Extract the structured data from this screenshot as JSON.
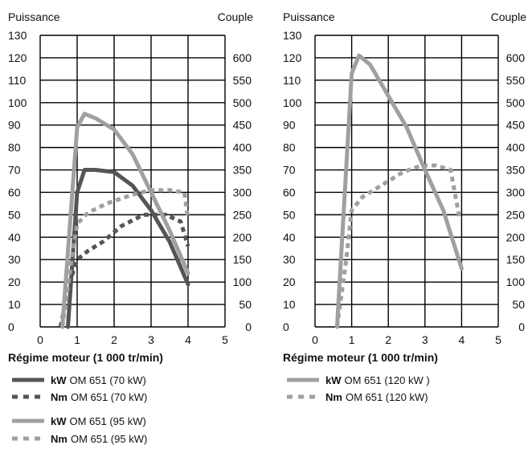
{
  "chart_data": [
    {
      "type": "line",
      "y_left_label": "Puissance",
      "y_right_label": "Couple",
      "xlabel": "Régime moteur (1 000 tr/min)",
      "xlim": [
        0,
        5
      ],
      "ylim_left": [
        0,
        130
      ],
      "ylim_right": [
        0,
        650
      ],
      "x_ticks": [
        "0",
        "1",
        "2",
        "3",
        "4",
        "5"
      ],
      "y_left_ticks": [
        "0",
        "10",
        "20",
        "30",
        "40",
        "50",
        "60",
        "70",
        "80",
        "90",
        "100",
        "110",
        "120",
        "130"
      ],
      "y_right_ticks": [
        "0",
        "50",
        "100",
        "150",
        "200",
        "250",
        "300",
        "350",
        "400",
        "450",
        "500",
        "550",
        "600"
      ],
      "grid": true,
      "series": [
        {
          "legend_bold": "kW",
          "legend_text": "OM 651 (70 kW)",
          "axis": "left",
          "color": "#555555",
          "dash": "solid",
          "x": [
            0.75,
            1.0,
            1.2,
            1.5,
            2.0,
            2.5,
            3.0,
            3.5,
            4.0
          ],
          "y": [
            0,
            60,
            70,
            70,
            69,
            63,
            52,
            38,
            19
          ]
        },
        {
          "legend_bold": "Nm",
          "legend_text": "OM 651 (70 kW)",
          "axis": "right",
          "color": "#555555",
          "dash": "dotted",
          "x": [
            0.55,
            0.8,
            1.0,
            1.3,
            1.7,
            2.2,
            2.8,
            3.4,
            3.8,
            4.0
          ],
          "y": [
            0,
            100,
            150,
            170,
            190,
            225,
            250,
            250,
            235,
            180
          ]
        },
        {
          "legend_bold": "kW",
          "legend_text": "OM 651 (95 kW)",
          "axis": "left",
          "color": "#a0a0a0",
          "dash": "solid",
          "x": [
            0.6,
            1.0,
            1.2,
            1.5,
            2.0,
            2.5,
            3.0,
            3.5,
            4.0
          ],
          "y": [
            0,
            89,
            95,
            93,
            88,
            77,
            60,
            43,
            24
          ]
        },
        {
          "legend_bold": "Nm",
          "legend_text": "OM 651 (95 kW)",
          "axis": "right",
          "color": "#a0a0a0",
          "dash": "dotted",
          "x": [
            0.6,
            0.85,
            1.0,
            1.3,
            1.8,
            2.5,
            3.0,
            3.5,
            3.9,
            4.0
          ],
          "y": [
            0,
            150,
            230,
            255,
            275,
            295,
            305,
            305,
            300,
            240
          ]
        }
      ]
    },
    {
      "type": "line",
      "y_left_label": "Puissance",
      "y_right_label": "Couple",
      "xlabel": "Régime moteur (1 000 tr/min)",
      "xlim": [
        0,
        5
      ],
      "ylim_left": [
        0,
        130
      ],
      "ylim_right": [
        0,
        650
      ],
      "x_ticks": [
        "0",
        "1",
        "2",
        "3",
        "4",
        "5"
      ],
      "y_left_ticks": [
        "0",
        "10",
        "20",
        "30",
        "40",
        "50",
        "60",
        "70",
        "80",
        "90",
        "100",
        "110",
        "120",
        "130"
      ],
      "y_right_ticks": [
        "0",
        "50",
        "100",
        "150",
        "200",
        "250",
        "300",
        "350",
        "400",
        "450",
        "500",
        "550",
        "600"
      ],
      "grid": true,
      "series": [
        {
          "legend_bold": "kW",
          "legend_text": "OM 651 (120 kW )",
          "axis": "left",
          "color": "#a0a0a0",
          "dash": "solid",
          "x": [
            0.6,
            1.0,
            1.2,
            1.5,
            2.0,
            2.5,
            3.0,
            3.5,
            4.0
          ],
          "y": [
            0,
            113,
            121,
            117,
            103,
            89,
            70,
            52,
            26
          ]
        },
        {
          "legend_bold": "Nm",
          "legend_text": "OM 651 (120 kW)",
          "axis": "right",
          "color": "#a0a0a0",
          "dash": "dotted",
          "x": [
            0.6,
            0.85,
            1.0,
            1.3,
            1.8,
            2.4,
            2.9,
            3.3,
            3.7,
            3.95
          ],
          "y": [
            0,
            150,
            260,
            290,
            315,
            345,
            360,
            360,
            350,
            240
          ]
        }
      ]
    }
  ]
}
